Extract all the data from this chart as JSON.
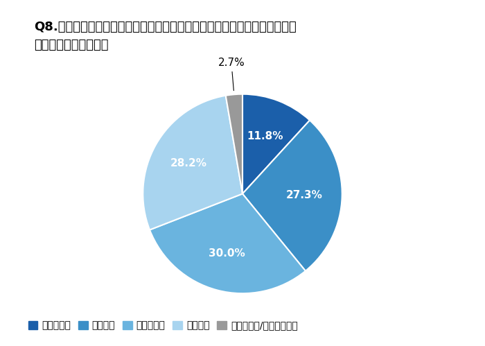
{
  "title_line1": "Q8.あなたは、新規商談創出のための施策として、ウェブセミナーの実施に",
  "title_line2": "　興味はありますか。",
  "labels": [
    "非常にある",
    "少しある",
    "あまりない",
    "全くない",
    "わからない/答えられない"
  ],
  "values": [
    11.8,
    27.3,
    30.0,
    28.2,
    2.7
  ],
  "colors": [
    "#1b5faa",
    "#3b8fc7",
    "#6ab4df",
    "#a8d4ef",
    "#999999"
  ],
  "autopct_labels": [
    "11.8%",
    "27.3%",
    "30.0%",
    "28.2%",
    "2.7%"
  ],
  "startangle": 90,
  "background_color": "#ffffff",
  "title_fontsize": 13,
  "legend_fontsize": 10,
  "pct_fontsize": 11
}
